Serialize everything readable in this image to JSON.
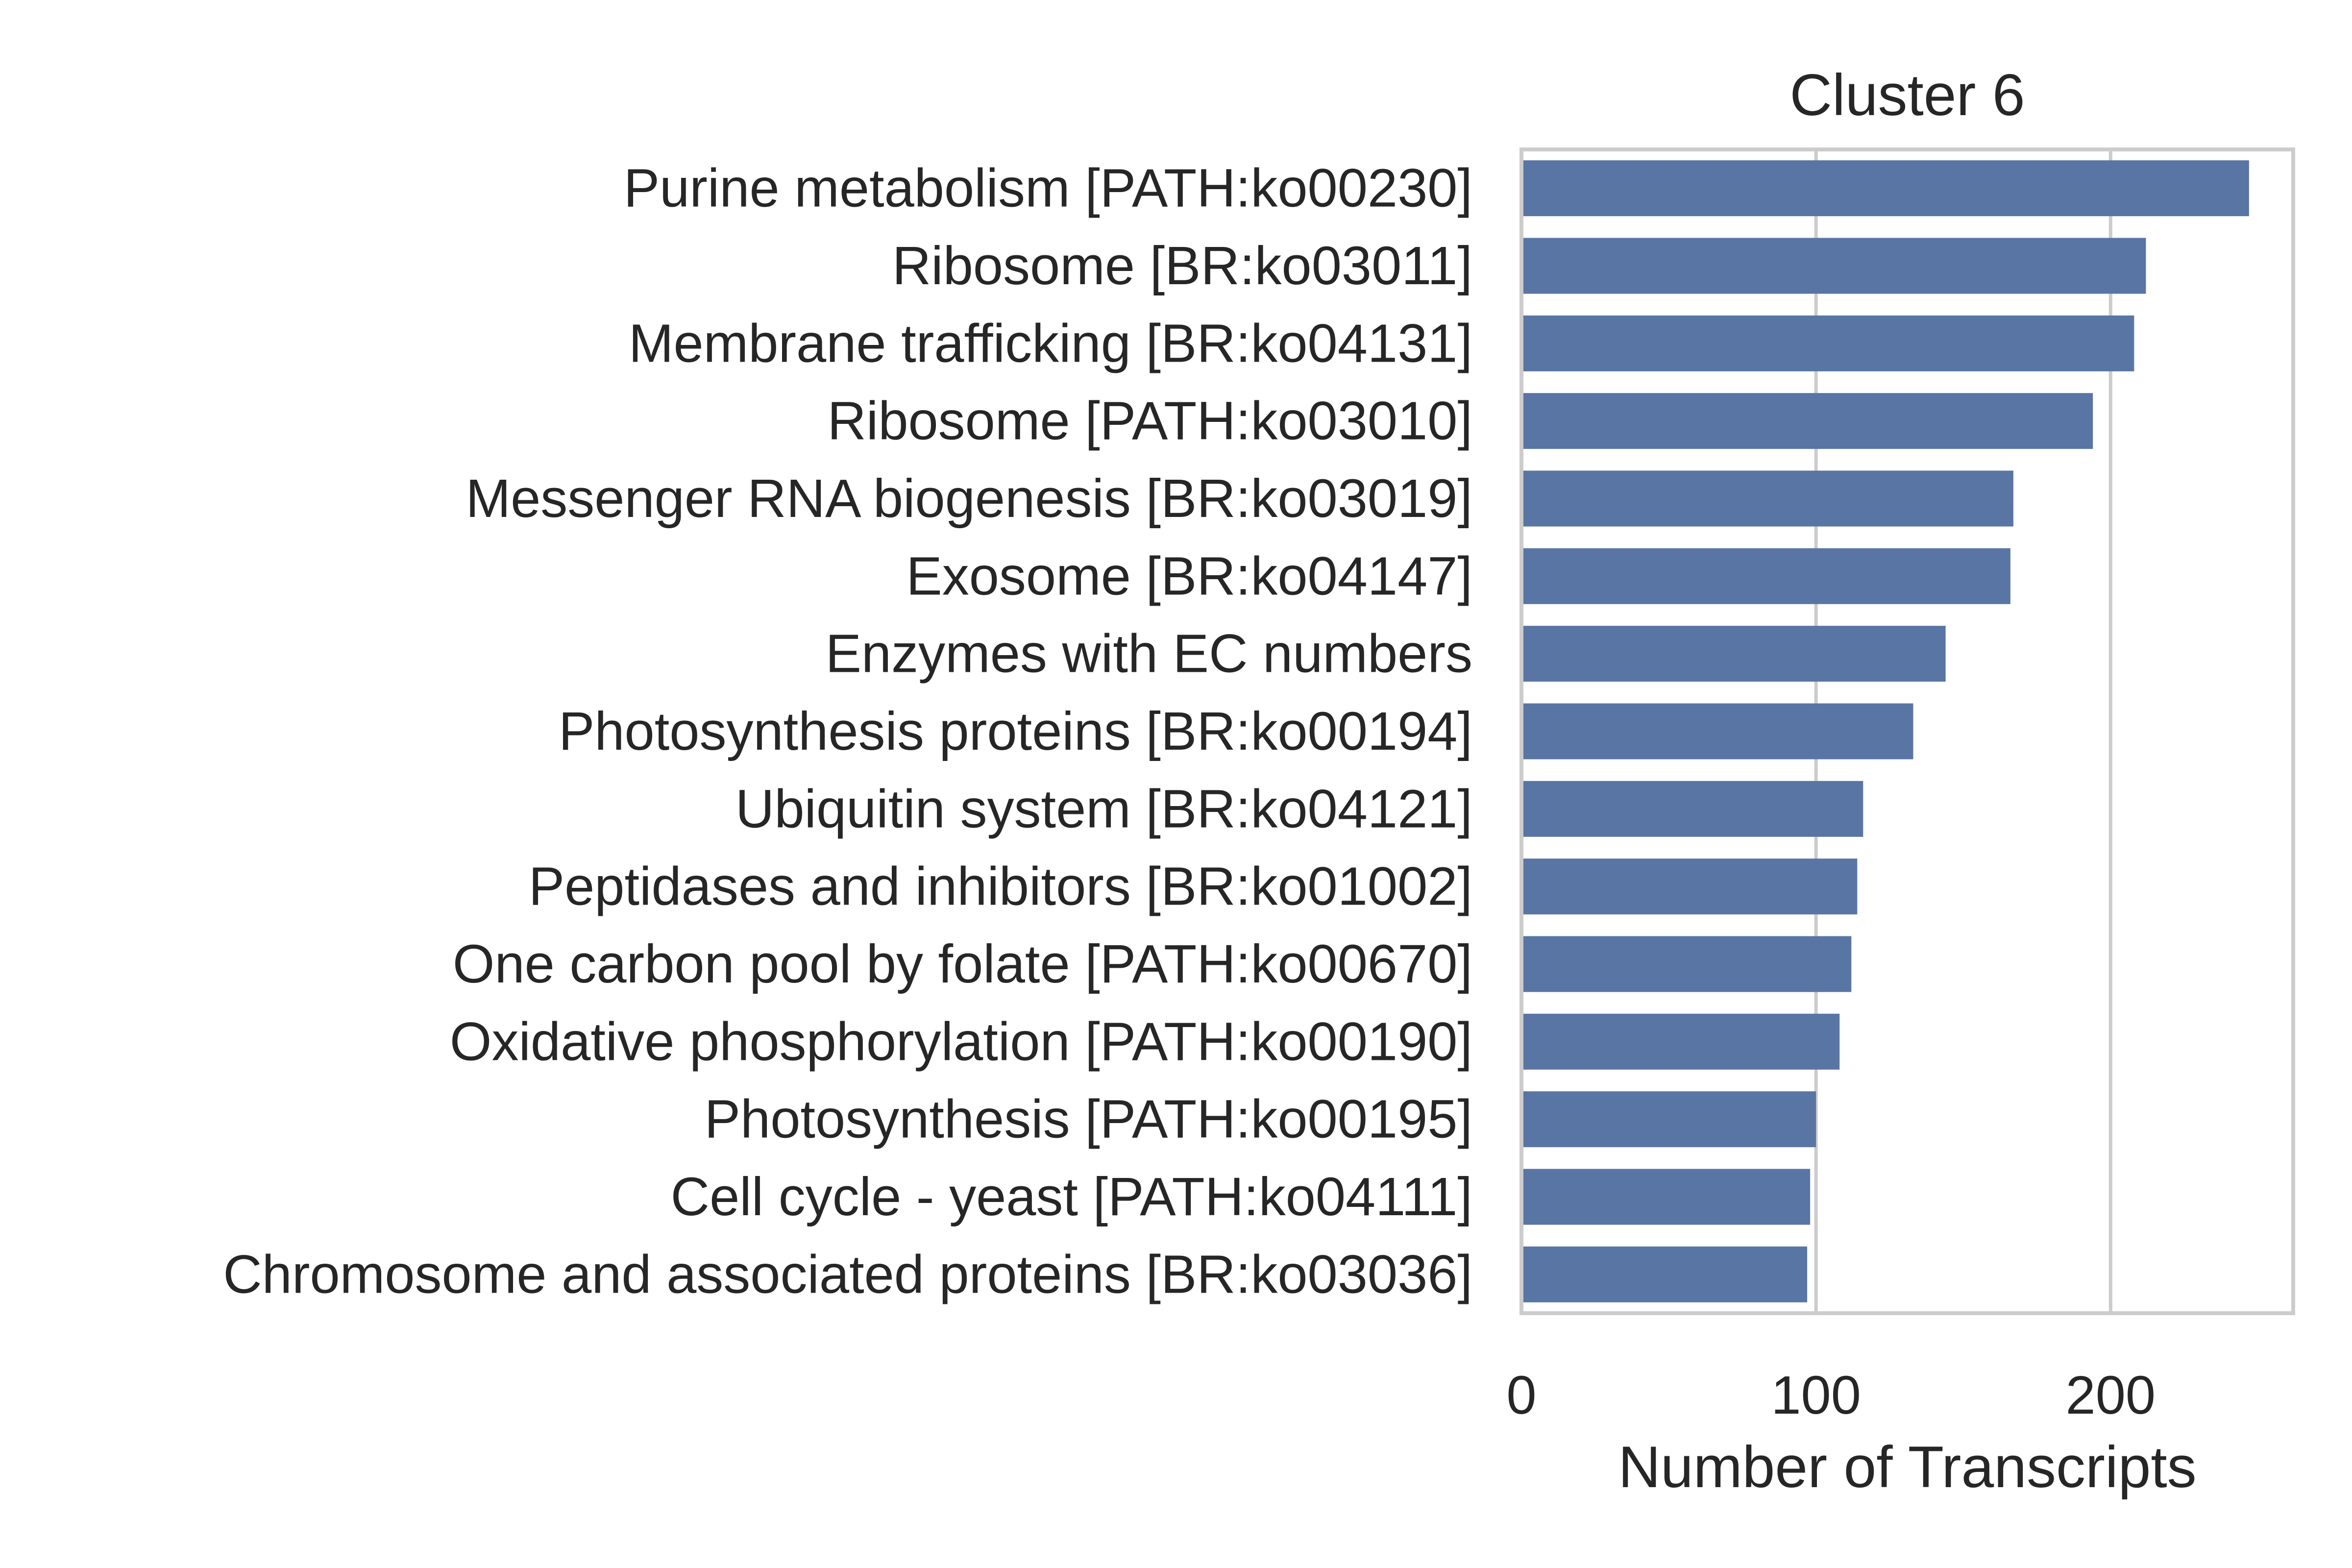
{
  "chart_data": {
    "type": "bar",
    "orientation": "horizontal",
    "title": "Cluster 6",
    "xlabel": "Number of Transcripts",
    "ylabel": "",
    "xlim": [
      0,
      262
    ],
    "xticks": [
      0,
      100,
      200
    ],
    "grid": true,
    "bar_color": "#5975a4",
    "categories": [
      "Purine metabolism [PATH:ko00230]",
      "Ribosome [BR:ko03011]",
      "Membrane trafficking [BR:ko04131]",
      "Ribosome [PATH:ko03010]",
      "Messenger RNA biogenesis [BR:ko03019]",
      "Exosome [BR:ko04147]",
      "Enzymes with EC numbers",
      "Photosynthesis proteins [BR:ko00194]",
      "Ubiquitin system [BR:ko04121]",
      "Peptidases and inhibitors [BR:ko01002]",
      "One carbon pool by folate [PATH:ko00670]",
      "Oxidative phosphorylation [PATH:ko00190]",
      "Photosynthesis [PATH:ko00195]",
      "Cell cycle - yeast [PATH:ko04111]",
      "Chromosome and associated proteins [BR:ko03036]"
    ],
    "values": [
      247,
      212,
      208,
      194,
      167,
      166,
      144,
      133,
      116,
      114,
      112,
      108,
      100,
      98,
      97
    ]
  }
}
